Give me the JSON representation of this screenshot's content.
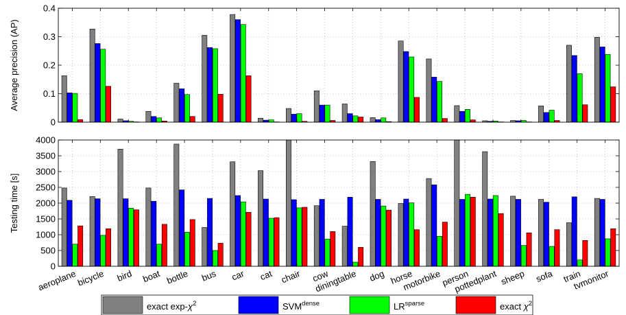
{
  "chart_data": [
    {
      "type": "bar",
      "ylabel": "Average precision (AP)",
      "xlabel": "",
      "ylim": [
        0,
        0.4
      ],
      "yticks": [
        "0",
        "0.1",
        "0.2",
        "0.3",
        "0.4"
      ],
      "grid": true,
      "categories": [
        "aeroplane",
        "bicycle",
        "bird",
        "boat",
        "bottle",
        "bus",
        "car",
        "cat",
        "chair",
        "cow",
        "diningtable",
        "dog",
        "horse",
        "motorbike",
        "person",
        "pottedplant",
        "sheep",
        "sofa",
        "train",
        "tvmonitor"
      ],
      "series": [
        {
          "name": "exact exp-χ²",
          "values": [
            0.163,
            0.327,
            0.011,
            0.038,
            0.137,
            0.305,
            0.378,
            0.014,
            0.048,
            0.11,
            0.064,
            0.016,
            0.285,
            0.222,
            0.058,
            0.005,
            0.006,
            0.057,
            0.27,
            0.298
          ]
        },
        {
          "name": "SVM dense",
          "values": [
            0.103,
            0.276,
            0.005,
            0.02,
            0.117,
            0.262,
            0.36,
            0.007,
            0.028,
            0.06,
            0.03,
            0.009,
            0.248,
            0.158,
            0.038,
            0.003,
            0.005,
            0.034,
            0.234,
            0.264
          ]
        },
        {
          "name": "LR sparse",
          "values": [
            0.101,
            0.256,
            0.003,
            0.015,
            0.097,
            0.258,
            0.343,
            0.008,
            0.03,
            0.06,
            0.022,
            0.015,
            0.229,
            0.143,
            0.045,
            0.004,
            0.006,
            0.042,
            0.17,
            0.238
          ]
        },
        {
          "name": "exact χ²",
          "values": [
            0.009,
            0.126,
            0.001,
            0.004,
            0.02,
            0.098,
            0.163,
            0.001,
            0.003,
            0.006,
            0.018,
            0.002,
            0.087,
            0.013,
            0.008,
            0.001,
            0.001,
            0.006,
            0.061,
            0.124
          ]
        }
      ]
    },
    {
      "type": "bar",
      "ylabel": "Testing time [s]",
      "xlabel": "",
      "ylim": [
        0,
        4000
      ],
      "yticks": [
        "0",
        "500",
        "1000",
        "1500",
        "2000",
        "2500",
        "3000",
        "3500",
        "4000"
      ],
      "grid": true,
      "categories": [
        "aeroplane",
        "bicycle",
        "bird",
        "boat",
        "bottle",
        "bus",
        "car",
        "cat",
        "chair",
        "cow",
        "diningtable",
        "dog",
        "horse",
        "motorbike",
        "person",
        "pottedplant",
        "sheep",
        "sofa",
        "train",
        "tvmonitor"
      ],
      "series": [
        {
          "name": "exact exp-χ²",
          "values": [
            2480,
            2210,
            3710,
            2480,
            3870,
            1230,
            3310,
            3030,
            4000,
            1920,
            1270,
            3320,
            1990,
            2780,
            4000,
            3630,
            2220,
            2120,
            1380,
            2150
          ]
        },
        {
          "name": "SVM dense",
          "values": [
            2090,
            2140,
            2140,
            2060,
            2420,
            2150,
            2240,
            2130,
            2110,
            2120,
            2190,
            2120,
            2130,
            2580,
            2120,
            2130,
            2120,
            2030,
            2200,
            2120
          ]
        },
        {
          "name": "LR sparse",
          "values": [
            700,
            980,
            1840,
            700,
            1080,
            500,
            2040,
            1520,
            1850,
            860,
            130,
            1910,
            2010,
            950,
            2280,
            2240,
            660,
            630,
            200,
            870
          ]
        },
        {
          "name": "exact χ²",
          "values": [
            1280,
            1190,
            1790,
            1330,
            1480,
            730,
            1710,
            1540,
            1870,
            1100,
            600,
            1780,
            1160,
            1400,
            2190,
            1670,
            1060,
            1160,
            820,
            1190
          ]
        }
      ]
    }
  ],
  "legend": {
    "items": [
      {
        "main": "exact exp-",
        "math": "χ",
        "sup": "2",
        "color": "#808080"
      },
      {
        "main": "SVM",
        "math": "",
        "sup": "dense",
        "color": "#0000ff"
      },
      {
        "main": "LR",
        "math": "",
        "sup": "sparse",
        "color": "#00ff00"
      },
      {
        "main": "exact ",
        "math": "χ",
        "sup": "2",
        "color": "#ff0000"
      }
    ]
  }
}
